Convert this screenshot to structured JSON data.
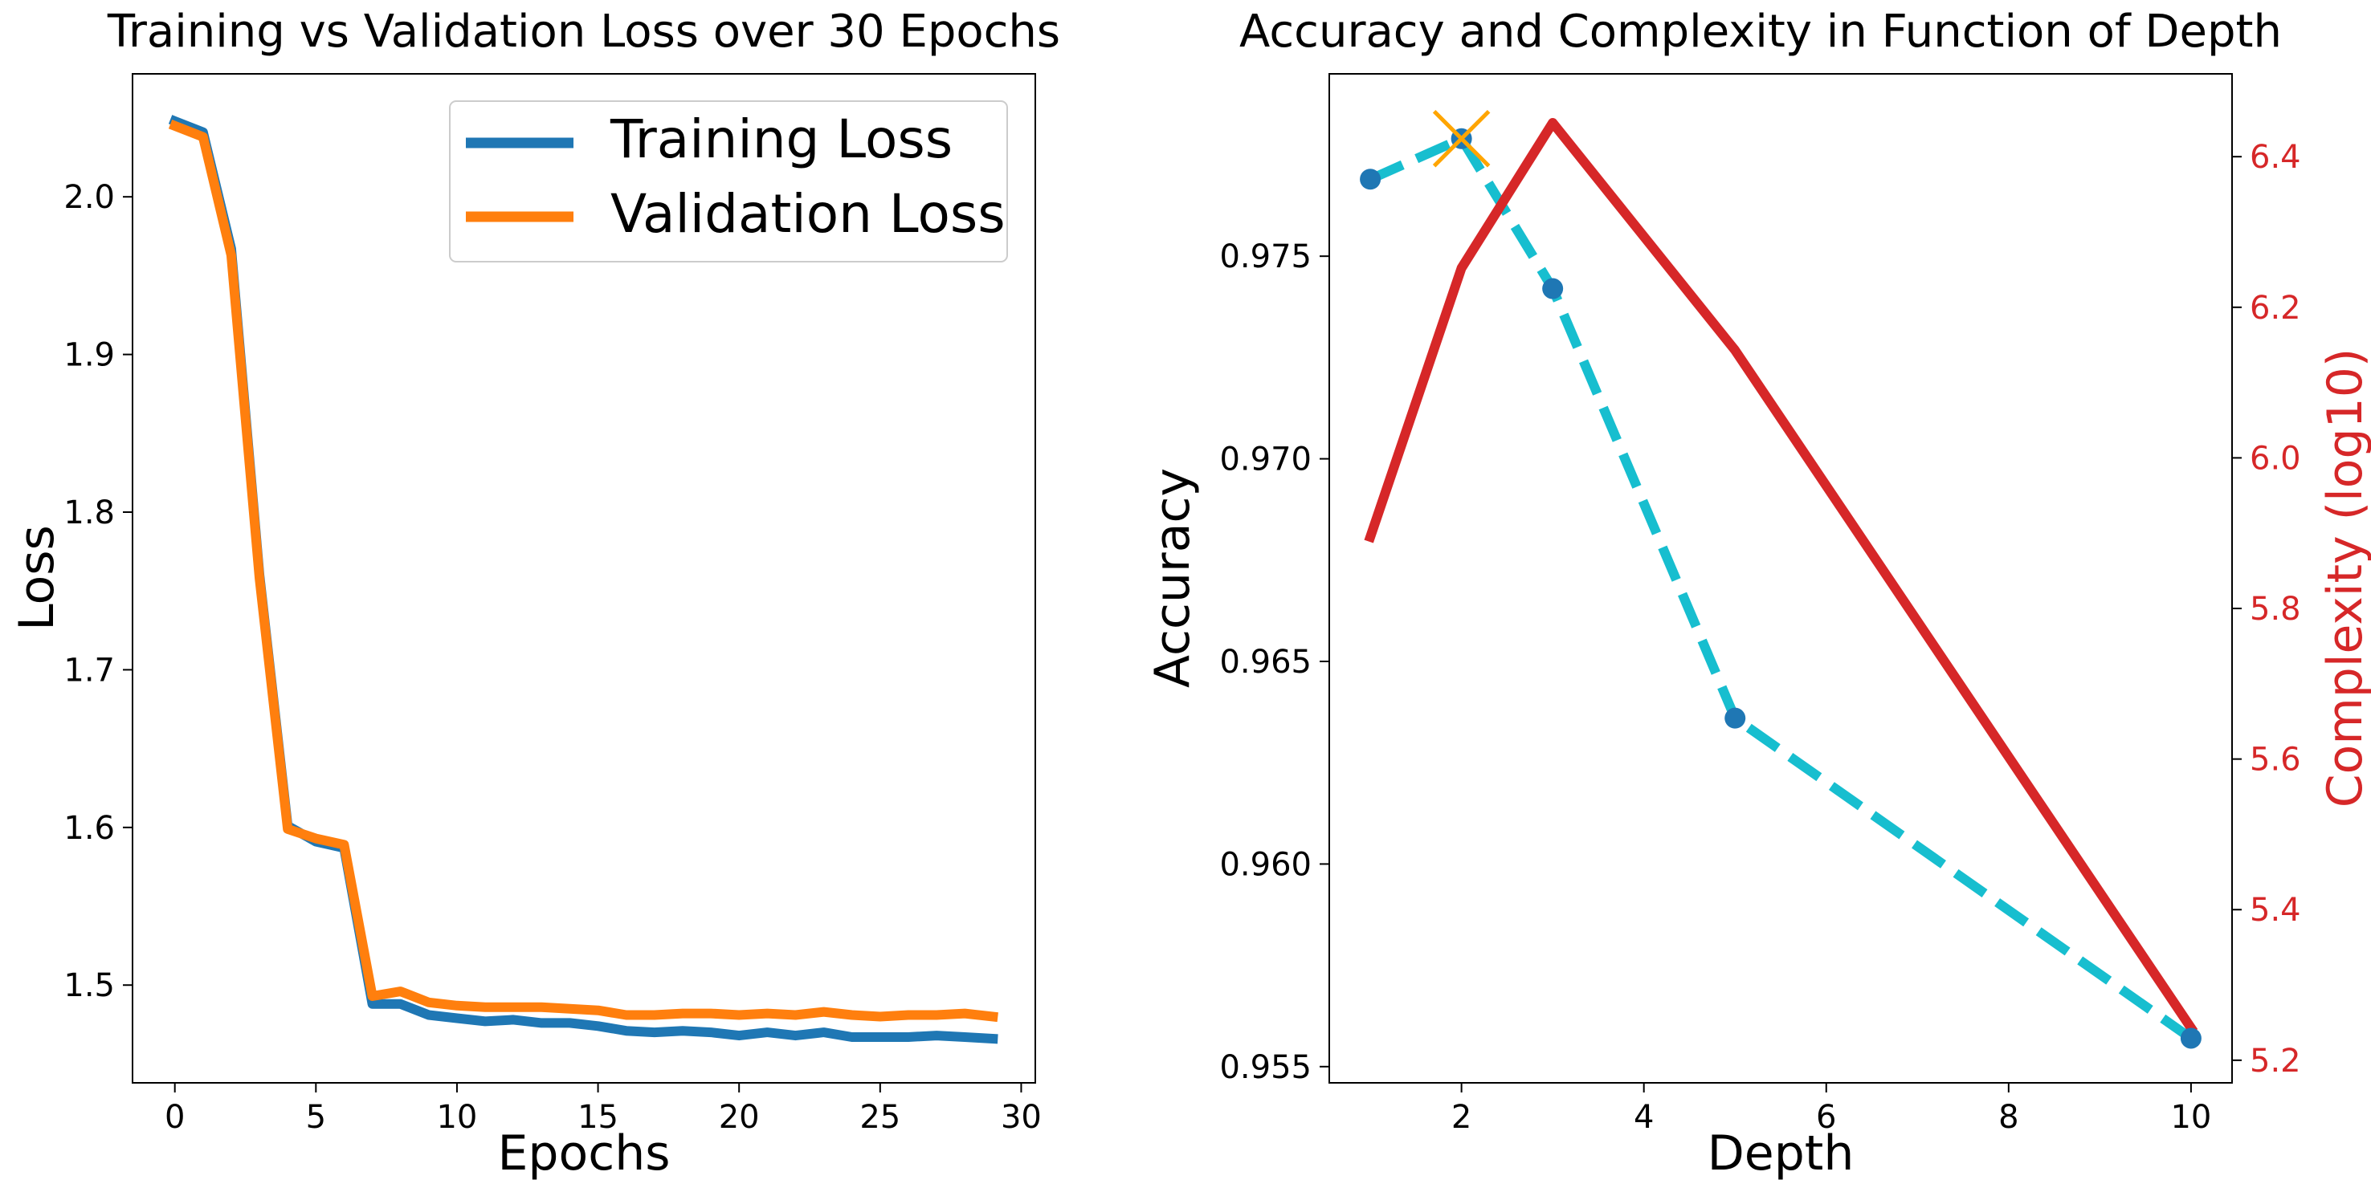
{
  "figure": {
    "background": "#ffffff"
  },
  "chart_data": [
    {
      "type": "line",
      "title": "Training vs Validation Loss over 30 Epochs",
      "xlabel": "Epochs",
      "ylabel": "Loss",
      "xlim": [
        -1.5,
        30.5
      ],
      "ylim": [
        1.438,
        2.078
      ],
      "xticks": [
        0,
        5,
        10,
        15,
        20,
        25,
        30
      ],
      "xtick_labels": [
        "0",
        "5",
        "10",
        "15",
        "20",
        "25",
        "30"
      ],
      "yticks": [
        1.5,
        1.6,
        1.7,
        1.8,
        1.9,
        2.0
      ],
      "ytick_labels": [
        "1.5",
        "1.6",
        "1.7",
        "1.8",
        "1.9",
        "2.0"
      ],
      "grid": false,
      "legend_position": "top-right",
      "x": [
        0,
        1,
        2,
        3,
        4,
        5,
        6,
        7,
        8,
        9,
        10,
        11,
        12,
        13,
        14,
        15,
        16,
        17,
        18,
        19,
        20,
        21,
        22,
        23,
        24,
        25,
        26,
        27,
        28,
        29
      ],
      "series": [
        {
          "name": "Training Loss",
          "color": "#1f77b4",
          "values": [
            2.048,
            2.041,
            1.967,
            1.76,
            1.601,
            1.591,
            1.587,
            1.488,
            1.488,
            1.481,
            1.479,
            1.477,
            1.478,
            1.476,
            1.476,
            1.474,
            1.471,
            1.47,
            1.471,
            1.47,
            1.468,
            1.47,
            1.468,
            1.47,
            1.467,
            1.467,
            1.467,
            1.468,
            1.467,
            1.466
          ]
        },
        {
          "name": "Validation Loss",
          "color": "#ff7f0e",
          "values": [
            2.045,
            2.038,
            1.963,
            1.758,
            1.599,
            1.593,
            1.589,
            1.493,
            1.496,
            1.489,
            1.487,
            1.486,
            1.486,
            1.486,
            1.485,
            1.484,
            1.481,
            1.481,
            1.482,
            1.482,
            1.481,
            1.482,
            1.481,
            1.483,
            1.481,
            1.48,
            1.481,
            1.481,
            1.482,
            1.48
          ]
        }
      ]
    },
    {
      "type": "line",
      "title": "Accuracy and Complexity in Function of Depth",
      "xlabel": "Depth",
      "ylabel": "Accuracy",
      "ylabel_right": "Complexity (log10)",
      "xlim": [
        0.55,
        10.45
      ],
      "ylim": [
        0.9546,
        0.9795
      ],
      "ylim_right": [
        5.17,
        6.51
      ],
      "xticks": [
        2,
        4,
        6,
        8,
        10
      ],
      "xtick_labels": [
        "2",
        "4",
        "6",
        "8",
        "10"
      ],
      "yticks": [
        0.955,
        0.96,
        0.965,
        0.97,
        0.975
      ],
      "ytick_labels": [
        "0.955",
        "0.960",
        "0.965",
        "0.970",
        "0.975"
      ],
      "yticks_right": [
        5.2,
        5.4,
        5.6,
        5.8,
        6.0,
        6.2,
        6.4
      ],
      "ytick_labels_right": [
        "5.2",
        "5.4",
        "5.6",
        "5.8",
        "6.0",
        "6.2",
        "6.4"
      ],
      "right_axis_color": "#d62728",
      "grid": false,
      "x": [
        1,
        2,
        3,
        5,
        10
      ],
      "series": [
        {
          "axis": "left",
          "color": "#17becf",
          "style": "dashed",
          "marker_color": "#1f77b4",
          "values": [
            0.9769,
            0.9779,
            0.9742,
            0.9636,
            0.9557
          ]
        },
        {
          "axis": "right",
          "color": "#d62728",
          "style": "solid",
          "values": [
            5.895,
            6.252,
            6.445,
            6.143,
            5.243
          ]
        }
      ],
      "highlight": {
        "x": 2,
        "y": 0.9779,
        "marker": "x",
        "color": "#ffa500"
      }
    }
  ]
}
